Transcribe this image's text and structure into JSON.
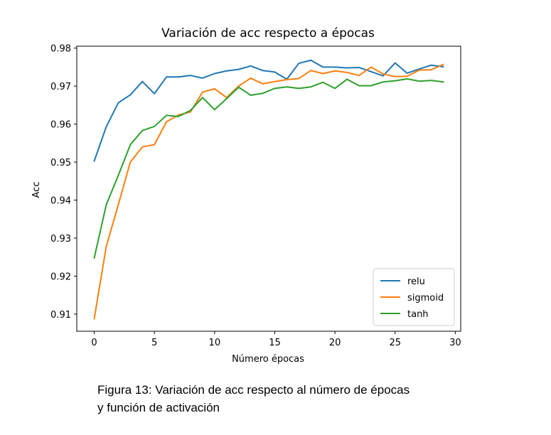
{
  "chart_data": {
    "type": "line",
    "title": "Variación de acc respecto a épocas",
    "xlabel": "Número épocas",
    "ylabel": "Acc",
    "xlim": [
      -1.45,
      30.45
    ],
    "ylim": [
      0.9055,
      0.9805
    ],
    "xticks": [
      0,
      5,
      10,
      15,
      20,
      25,
      30
    ],
    "yticks": [
      0.91,
      0.92,
      0.93,
      0.94,
      0.95,
      0.96,
      0.97,
      0.98
    ],
    "grid": false,
    "legend": "lower right",
    "x": [
      0,
      1,
      2,
      3,
      4,
      5,
      6,
      7,
      8,
      9,
      10,
      11,
      12,
      13,
      14,
      15,
      16,
      17,
      18,
      19,
      20,
      21,
      22,
      23,
      24,
      25,
      26,
      27,
      28,
      29
    ],
    "series": [
      {
        "name": "relu",
        "color": "#1f77b4",
        "values": [
          0.9503,
          0.9593,
          0.9656,
          0.9677,
          0.9712,
          0.968,
          0.9724,
          0.9724,
          0.9728,
          0.9721,
          0.9733,
          0.974,
          0.9744,
          0.9753,
          0.9741,
          0.9737,
          0.9718,
          0.976,
          0.9768,
          0.975,
          0.975,
          0.9748,
          0.9749,
          0.9738,
          0.9727,
          0.9761,
          0.9734,
          0.9745,
          0.9755,
          0.9751
        ]
      },
      {
        "name": "sigmoid",
        "color": "#ff7f0e",
        "values": [
          0.9088,
          0.9278,
          0.9388,
          0.95,
          0.954,
          0.9546,
          0.9606,
          0.9624,
          0.9632,
          0.9684,
          0.9693,
          0.967,
          0.97,
          0.9721,
          0.9706,
          0.9712,
          0.9717,
          0.972,
          0.9741,
          0.9733,
          0.974,
          0.9736,
          0.9728,
          0.975,
          0.9732,
          0.9725,
          0.9726,
          0.9742,
          0.9743,
          0.9757
        ]
      },
      {
        "name": "tanh",
        "color": "#2ca02c",
        "values": [
          0.9248,
          0.9388,
          0.9465,
          0.9546,
          0.9583,
          0.9594,
          0.9623,
          0.962,
          0.9636,
          0.967,
          0.9638,
          0.9667,
          0.9697,
          0.9676,
          0.9681,
          0.9694,
          0.9698,
          0.9694,
          0.9698,
          0.971,
          0.9694,
          0.9718,
          0.9701,
          0.9701,
          0.9711,
          0.9714,
          0.9719,
          0.9713,
          0.9715,
          0.9711
        ]
      }
    ]
  },
  "caption": {
    "line1": "Figura 13: Variación de acc respecto al número de épocas",
    "line2": "y función de activación"
  }
}
